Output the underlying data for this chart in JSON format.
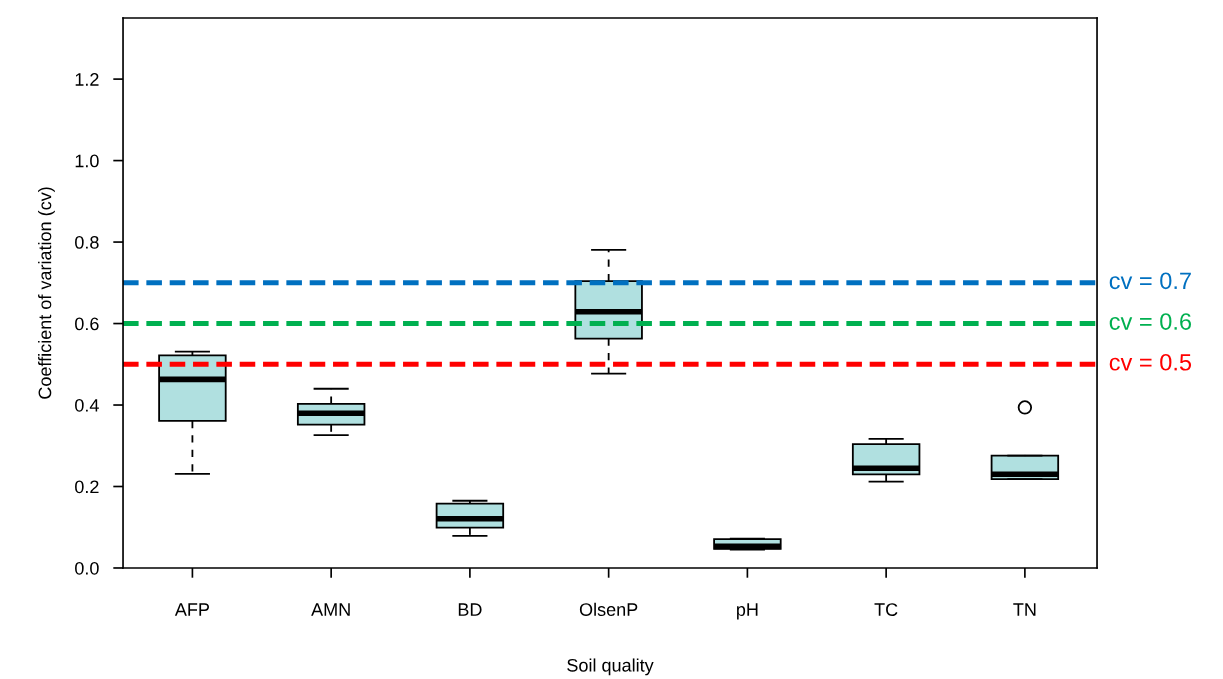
{
  "chart_data": {
    "type": "box",
    "xlabel": "Soil quality",
    "ylabel": "Coefficient of variation (cv)",
    "categories": [
      "AFP",
      "AMN",
      "BD",
      "OlsenP",
      "pH",
      "TC",
      "TN"
    ],
    "color": "#b0e0e0",
    "boxes": [
      {
        "low": 0.231,
        "q1": 0.361,
        "median": 0.463,
        "q3": 0.522,
        "high": 0.531
      },
      {
        "low": 0.326,
        "q1": 0.352,
        "median": 0.38,
        "q3": 0.403,
        "high": 0.44
      },
      {
        "low": 0.079,
        "q1": 0.099,
        "median": 0.121,
        "q3": 0.158,
        "high": 0.165
      },
      {
        "low": 0.477,
        "q1": 0.563,
        "median": 0.629,
        "q3": 0.704,
        "high": 0.781
      },
      {
        "low": 0.045,
        "q1": 0.047,
        "median": 0.053,
        "q3": 0.071,
        "high": 0.072
      },
      {
        "low": 0.212,
        "q1": 0.23,
        "median": 0.245,
        "q3": 0.304,
        "high": 0.317
      },
      {
        "low": 0.218,
        "q1": 0.218,
        "median": 0.23,
        "q3": 0.276,
        "high": 0.276,
        "outliers": [
          0.394
        ]
      }
    ],
    "ylim": [
      0,
      1.35
    ],
    "yticks": [
      {
        "value": 0,
        "label": "0.0"
      },
      0.2,
      0.4,
      0.6,
      0.8,
      {
        "value": 1,
        "label": "1.0"
      },
      1.2
    ],
    "grid": false,
    "legend": false,
    "ref_lines": [
      {
        "axis": "y",
        "value": 0.7,
        "label": "cv = 0.7",
        "color": "#0070c0",
        "line_style": "dashed"
      },
      {
        "axis": "y",
        "value": 0.6,
        "label": "cv = 0.6",
        "color": "#00b050",
        "line_style": "dashed"
      },
      {
        "axis": "y",
        "value": 0.5,
        "label": "cv = 0.5",
        "color": "#ff0000",
        "line_style": "dashed"
      }
    ]
  }
}
